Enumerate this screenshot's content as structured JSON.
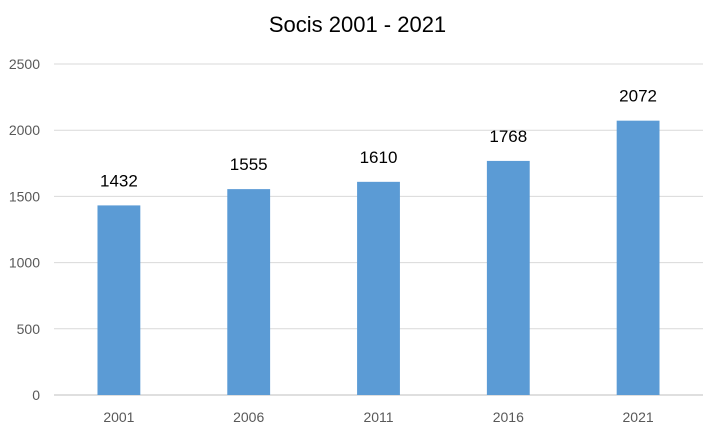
{
  "chart_data": {
    "type": "bar",
    "title": "Socis 2001 - 2021",
    "categories": [
      "2001",
      "2006",
      "2011",
      "2016",
      "2021"
    ],
    "values": [
      1432,
      1555,
      1610,
      1768,
      2072
    ],
    "data_labels": [
      "1432",
      "1555",
      "1610",
      "1768",
      "2072"
    ],
    "xlabel": "",
    "ylabel": "",
    "ylim": [
      0,
      2500
    ],
    "yticks": [
      0,
      500,
      1000,
      1500,
      2000,
      2500
    ],
    "ytick_labels": [
      "0",
      "500",
      "1000",
      "1500",
      "2000",
      "2500"
    ],
    "grid": true,
    "legend": "none",
    "colors": {
      "bar": "#5B9BD5",
      "grid": "#D9D9D9",
      "axis": "#BFBFBF"
    }
  }
}
